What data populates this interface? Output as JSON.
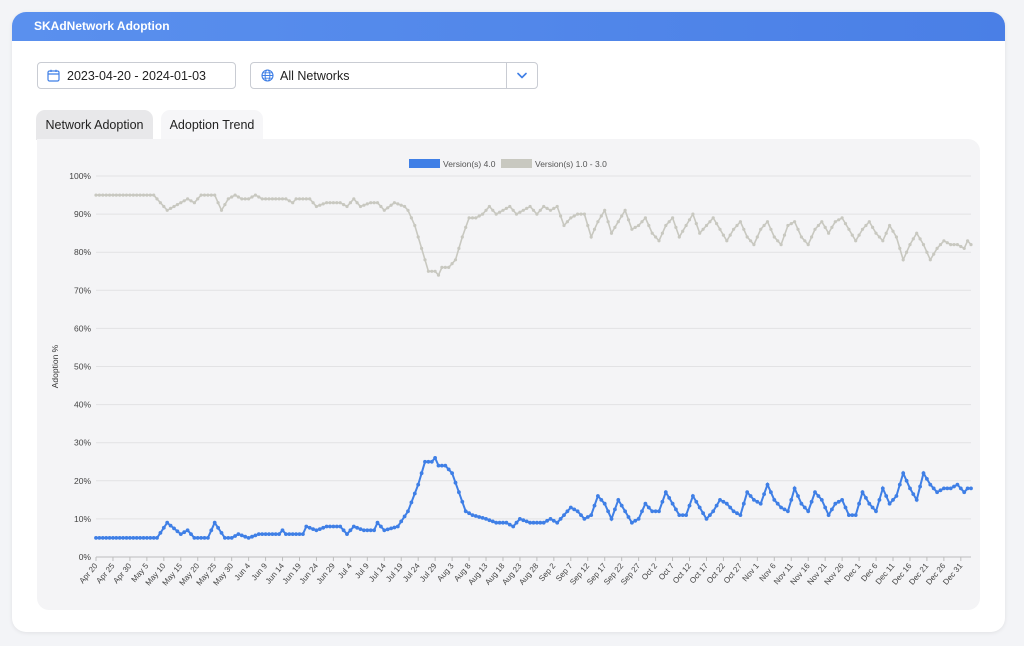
{
  "header": {
    "title": "SKAdNetwork Adoption"
  },
  "filters": {
    "date_range": "2023-04-20 - 2024-01-03",
    "network": "All Networks"
  },
  "tabs": [
    {
      "label": "Network Adoption",
      "active": true
    },
    {
      "label": "Adoption Trend",
      "active": false
    }
  ],
  "icons": {
    "date": "calendar-icon",
    "network": "globe-icon",
    "dropdown": "chevron-down-icon"
  },
  "colors": {
    "header": "#4f86ea",
    "series_v4": "#3f7fe6",
    "series_v13": "#c8c8c0"
  },
  "chart_data": {
    "type": "line",
    "title": "",
    "xlabel": "",
    "ylabel": "Adoption %",
    "ylim": [
      0,
      100
    ],
    "yticks": [
      "0%",
      "10%",
      "20%",
      "30%",
      "40%",
      "50%",
      "60%",
      "70%",
      "80%",
      "90%",
      "100%"
    ],
    "legend_position": "top-center",
    "grid": true,
    "x_tick_labels": [
      "Apr 20",
      "Apr 25",
      "Apr 30",
      "May 5",
      "May 10",
      "May 15",
      "May 20",
      "May 25",
      "May 30",
      "Jun 4",
      "Jun 9",
      "Jun 14",
      "Jun 19",
      "Jun 24",
      "Jun 29",
      "Jul 4",
      "Jul 9",
      "Jul 14",
      "Jul 19",
      "Jul 24",
      "Jul 29",
      "Aug 3",
      "Aug 8",
      "Aug 13",
      "Aug 18",
      "Aug 23",
      "Aug 28",
      "Sep 2",
      "Sep 7",
      "Sep 12",
      "Sep 17",
      "Sep 22",
      "Sep 27",
      "Oct 2",
      "Oct 7",
      "Oct 12",
      "Oct 17",
      "Oct 22",
      "Oct 27",
      "Nov 1",
      "Nov 6",
      "Nov 11",
      "Nov 16",
      "Nov 21",
      "Nov 26",
      "Dec 1",
      "Dec 6",
      "Dec 11",
      "Dec 16",
      "Dec 21",
      "Dec 26",
      "Dec 31"
    ],
    "x_start": "2023-04-20",
    "x_end": "2024-01-03",
    "series": [
      {
        "name": "Version(s) 4.0",
        "keypoints": [
          [
            "2023-04-20",
            5
          ],
          [
            "2023-05-08",
            5
          ],
          [
            "2023-05-11",
            9
          ],
          [
            "2023-05-15",
            6
          ],
          [
            "2023-05-17",
            7
          ],
          [
            "2023-05-19",
            5
          ],
          [
            "2023-05-23",
            5
          ],
          [
            "2023-05-25",
            9
          ],
          [
            "2023-05-28",
            5
          ],
          [
            "2023-05-30",
            5
          ],
          [
            "2023-06-01",
            6
          ],
          [
            "2023-06-04",
            5
          ],
          [
            "2023-06-07",
            6
          ],
          [
            "2023-06-13",
            6
          ],
          [
            "2023-06-14",
            7
          ],
          [
            "2023-06-15",
            6
          ],
          [
            "2023-06-20",
            6
          ],
          [
            "2023-06-21",
            8
          ],
          [
            "2023-06-24",
            7
          ],
          [
            "2023-06-27",
            8
          ],
          [
            "2023-07-01",
            8
          ],
          [
            "2023-07-03",
            6
          ],
          [
            "2023-07-05",
            8
          ],
          [
            "2023-07-08",
            7
          ],
          [
            "2023-07-11",
            7
          ],
          [
            "2023-07-12",
            9
          ],
          [
            "2023-07-14",
            7
          ],
          [
            "2023-07-18",
            8
          ],
          [
            "2023-07-21",
            12
          ],
          [
            "2023-07-24",
            19
          ],
          [
            "2023-07-26",
            25
          ],
          [
            "2023-07-28",
            25
          ],
          [
            "2023-07-29",
            26
          ],
          [
            "2023-07-30",
            24
          ],
          [
            "2023-08-01",
            24
          ],
          [
            "2023-08-03",
            22
          ],
          [
            "2023-08-05",
            17
          ],
          [
            "2023-08-07",
            12
          ],
          [
            "2023-08-09",
            11
          ],
          [
            "2023-08-13",
            10
          ],
          [
            "2023-08-16",
            9
          ],
          [
            "2023-08-19",
            9
          ],
          [
            "2023-08-21",
            8
          ],
          [
            "2023-08-23",
            10
          ],
          [
            "2023-08-26",
            9
          ],
          [
            "2023-08-30",
            9
          ],
          [
            "2023-09-01",
            10
          ],
          [
            "2023-09-03",
            9
          ],
          [
            "2023-09-05",
            11
          ],
          [
            "2023-09-07",
            13
          ],
          [
            "2023-09-09",
            12
          ],
          [
            "2023-09-11",
            10
          ],
          [
            "2023-09-13",
            11
          ],
          [
            "2023-09-15",
            16
          ],
          [
            "2023-09-17",
            14
          ],
          [
            "2023-09-19",
            10
          ],
          [
            "2023-09-21",
            15
          ],
          [
            "2023-09-23",
            12
          ],
          [
            "2023-09-25",
            9
          ],
          [
            "2023-09-27",
            10
          ],
          [
            "2023-09-29",
            14
          ],
          [
            "2023-10-01",
            12
          ],
          [
            "2023-10-03",
            12
          ],
          [
            "2023-10-05",
            17
          ],
          [
            "2023-10-07",
            14
          ],
          [
            "2023-10-09",
            11
          ],
          [
            "2023-10-11",
            11
          ],
          [
            "2023-10-13",
            16
          ],
          [
            "2023-10-15",
            13
          ],
          [
            "2023-10-17",
            10
          ],
          [
            "2023-10-19",
            12
          ],
          [
            "2023-10-21",
            15
          ],
          [
            "2023-10-23",
            14
          ],
          [
            "2023-10-25",
            12
          ],
          [
            "2023-10-27",
            11
          ],
          [
            "2023-10-29",
            17
          ],
          [
            "2023-10-31",
            15
          ],
          [
            "2023-11-02",
            14
          ],
          [
            "2023-11-04",
            19
          ],
          [
            "2023-11-06",
            15
          ],
          [
            "2023-11-08",
            13
          ],
          [
            "2023-11-10",
            12
          ],
          [
            "2023-11-12",
            18
          ],
          [
            "2023-11-14",
            14
          ],
          [
            "2023-11-16",
            12
          ],
          [
            "2023-11-18",
            17
          ],
          [
            "2023-11-20",
            15
          ],
          [
            "2023-11-22",
            11
          ],
          [
            "2023-11-24",
            14
          ],
          [
            "2023-11-26",
            15
          ],
          [
            "2023-11-28",
            11
          ],
          [
            "2023-11-30",
            11
          ],
          [
            "2023-12-02",
            17
          ],
          [
            "2023-12-04",
            14
          ],
          [
            "2023-12-06",
            12
          ],
          [
            "2023-12-08",
            18
          ],
          [
            "2023-12-10",
            14
          ],
          [
            "2023-12-12",
            16
          ],
          [
            "2023-12-14",
            22
          ],
          [
            "2023-12-16",
            18
          ],
          [
            "2023-12-18",
            15
          ],
          [
            "2023-12-20",
            22
          ],
          [
            "2023-12-22",
            19
          ],
          [
            "2023-12-24",
            17
          ],
          [
            "2023-12-26",
            18
          ],
          [
            "2023-12-28",
            18
          ],
          [
            "2023-12-30",
            19
          ],
          [
            "2024-01-01",
            17
          ],
          [
            "2024-01-02",
            18
          ],
          [
            "2024-01-03",
            18
          ]
        ]
      },
      {
        "name": "Version(s) 1.0 - 3.0",
        "keypoints": [
          [
            "2023-04-20",
            95
          ],
          [
            "2023-05-07",
            95
          ],
          [
            "2023-05-09",
            93
          ],
          [
            "2023-05-11",
            91
          ],
          [
            "2023-05-13",
            92
          ],
          [
            "2023-05-15",
            93
          ],
          [
            "2023-05-17",
            94
          ],
          [
            "2023-05-19",
            93
          ],
          [
            "2023-05-21",
            95
          ],
          [
            "2023-05-25",
            95
          ],
          [
            "2023-05-27",
            91
          ],
          [
            "2023-05-29",
            94
          ],
          [
            "2023-05-31",
            95
          ],
          [
            "2023-06-02",
            94
          ],
          [
            "2023-06-04",
            94
          ],
          [
            "2023-06-06",
            95
          ],
          [
            "2023-06-08",
            94
          ],
          [
            "2023-06-15",
            94
          ],
          [
            "2023-06-17",
            93
          ],
          [
            "2023-06-18",
            94
          ],
          [
            "2023-06-22",
            94
          ],
          [
            "2023-06-24",
            92
          ],
          [
            "2023-06-27",
            93
          ],
          [
            "2023-07-01",
            93
          ],
          [
            "2023-07-03",
            92
          ],
          [
            "2023-07-05",
            94
          ],
          [
            "2023-07-07",
            92
          ],
          [
            "2023-07-10",
            93
          ],
          [
            "2023-07-12",
            93
          ],
          [
            "2023-07-14",
            91
          ],
          [
            "2023-07-17",
            93
          ],
          [
            "2023-07-20",
            92
          ],
          [
            "2023-07-21",
            91
          ],
          [
            "2023-07-23",
            87
          ],
          [
            "2023-07-25",
            81
          ],
          [
            "2023-07-27",
            75
          ],
          [
            "2023-07-29",
            75
          ],
          [
            "2023-07-30",
            74
          ],
          [
            "2023-07-31",
            76
          ],
          [
            "2023-08-02",
            76
          ],
          [
            "2023-08-04",
            78
          ],
          [
            "2023-08-06",
            84
          ],
          [
            "2023-08-08",
            89
          ],
          [
            "2023-08-10",
            89
          ],
          [
            "2023-08-12",
            90
          ],
          [
            "2023-08-14",
            92
          ],
          [
            "2023-08-16",
            90
          ],
          [
            "2023-08-18",
            91
          ],
          [
            "2023-08-20",
            92
          ],
          [
            "2023-08-22",
            90
          ],
          [
            "2023-08-24",
            91
          ],
          [
            "2023-08-26",
            92
          ],
          [
            "2023-08-28",
            90
          ],
          [
            "2023-08-30",
            92
          ],
          [
            "2023-09-01",
            91
          ],
          [
            "2023-09-03",
            92
          ],
          [
            "2023-09-05",
            87
          ],
          [
            "2023-09-07",
            89
          ],
          [
            "2023-09-09",
            90
          ],
          [
            "2023-09-11",
            90
          ],
          [
            "2023-09-13",
            84
          ],
          [
            "2023-09-15",
            88
          ],
          [
            "2023-09-17",
            91
          ],
          [
            "2023-09-19",
            85
          ],
          [
            "2023-09-21",
            88
          ],
          [
            "2023-09-23",
            91
          ],
          [
            "2023-09-25",
            86
          ],
          [
            "2023-09-27",
            87
          ],
          [
            "2023-09-29",
            89
          ],
          [
            "2023-10-01",
            85
          ],
          [
            "2023-10-03",
            83
          ],
          [
            "2023-10-05",
            87
          ],
          [
            "2023-10-07",
            89
          ],
          [
            "2023-10-09",
            84
          ],
          [
            "2023-10-11",
            87
          ],
          [
            "2023-10-13",
            90
          ],
          [
            "2023-10-15",
            85
          ],
          [
            "2023-10-17",
            87
          ],
          [
            "2023-10-19",
            89
          ],
          [
            "2023-10-21",
            86
          ],
          [
            "2023-10-23",
            83
          ],
          [
            "2023-10-25",
            86
          ],
          [
            "2023-10-27",
            88
          ],
          [
            "2023-10-29",
            84
          ],
          [
            "2023-10-31",
            82
          ],
          [
            "2023-11-02",
            86
          ],
          [
            "2023-11-04",
            88
          ],
          [
            "2023-11-06",
            84
          ],
          [
            "2023-11-08",
            82
          ],
          [
            "2023-11-10",
            87
          ],
          [
            "2023-11-12",
            88
          ],
          [
            "2023-11-14",
            84
          ],
          [
            "2023-11-16",
            82
          ],
          [
            "2023-11-18",
            86
          ],
          [
            "2023-11-20",
            88
          ],
          [
            "2023-11-22",
            85
          ],
          [
            "2023-11-24",
            88
          ],
          [
            "2023-11-26",
            89
          ],
          [
            "2023-11-28",
            86
          ],
          [
            "2023-11-30",
            83
          ],
          [
            "2023-12-02",
            86
          ],
          [
            "2023-12-04",
            88
          ],
          [
            "2023-12-06",
            85
          ],
          [
            "2023-12-08",
            83
          ],
          [
            "2023-12-10",
            87
          ],
          [
            "2023-12-12",
            84
          ],
          [
            "2023-12-14",
            78
          ],
          [
            "2023-12-16",
            82
          ],
          [
            "2023-12-18",
            85
          ],
          [
            "2023-12-20",
            82
          ],
          [
            "2023-12-22",
            78
          ],
          [
            "2023-12-24",
            81
          ],
          [
            "2023-12-26",
            83
          ],
          [
            "2023-12-28",
            82
          ],
          [
            "2023-12-30",
            82
          ],
          [
            "2024-01-01",
            81
          ],
          [
            "2024-01-02",
            83
          ],
          [
            "2024-01-03",
            82
          ]
        ]
      }
    ]
  }
}
